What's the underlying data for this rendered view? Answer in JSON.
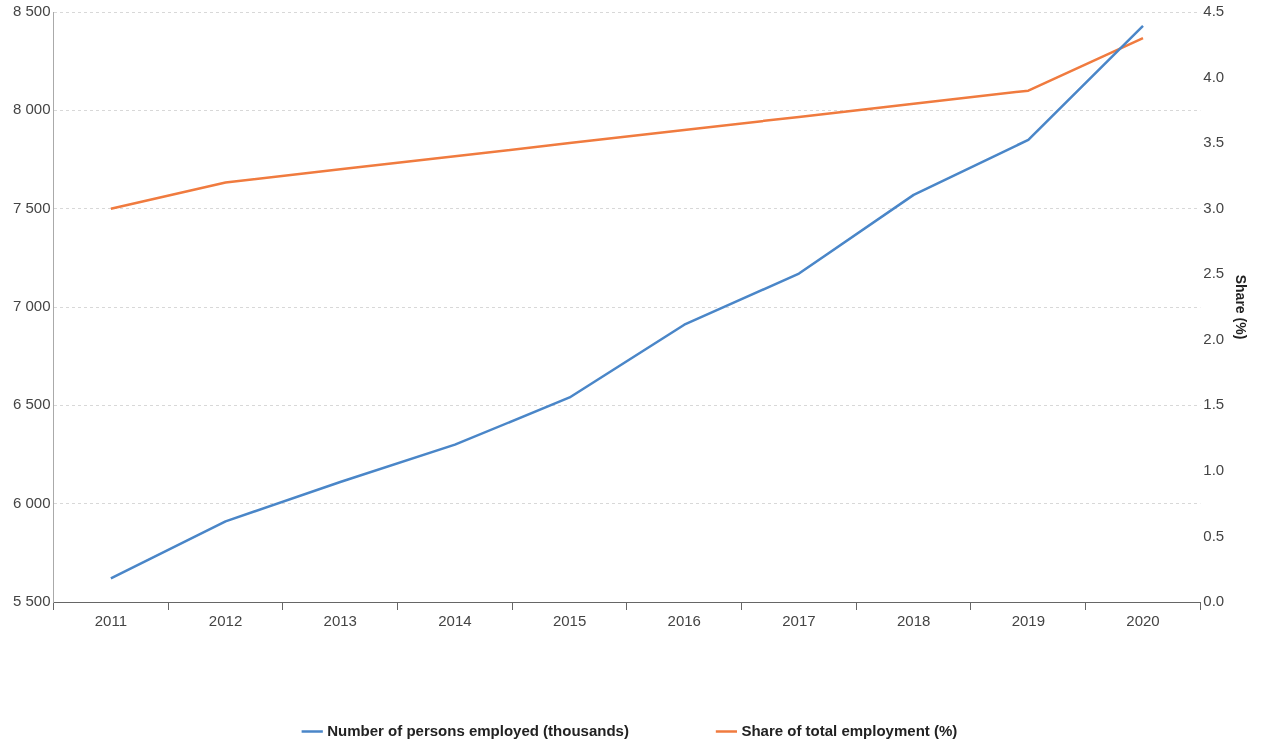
{
  "chart_data": {
    "type": "line",
    "y2label": "Share (%)",
    "categories": [
      "2011",
      "2012",
      "2013",
      "2014",
      "2015",
      "2016",
      "2017",
      "2018",
      "2019",
      "2020"
    ],
    "series": [
      {
        "name": "Number of persons employed (thousands)",
        "color": "#4a86c8",
        "values": [
          5620,
          5910,
          6110,
          6300,
          6540,
          6910,
          7170,
          7570,
          7850,
          8430
        ]
      },
      {
        "name": "Share of total employment (%)",
        "color": "#f07b3f",
        "axis": "y2",
        "values": [
          3.0,
          3.2,
          3.3,
          3.4,
          3.5,
          3.6,
          3.7,
          3.8,
          3.9,
          4.3
        ]
      }
    ],
    "ylim": [
      5500,
      8500
    ],
    "yticks": [
      {
        "value": 5500,
        "label": "5 500"
      },
      {
        "value": 6000,
        "label": "6 000"
      },
      {
        "value": 6500,
        "label": "6 500"
      },
      {
        "value": 7000,
        "label": "7 000"
      },
      {
        "value": 7500,
        "label": "7 500"
      },
      {
        "value": 8000,
        "label": "8 000"
      },
      {
        "value": 8500,
        "label": "8 500"
      }
    ],
    "y2lim": [
      0,
      4.5
    ],
    "y2ticks": [
      {
        "value": 0,
        "label": "0.0"
      },
      {
        "value": 0.5,
        "label": "0.5"
      },
      {
        "value": 1,
        "label": "1.0"
      },
      {
        "value": 1.5,
        "label": "1.5"
      },
      {
        "value": 2,
        "label": "2.0"
      },
      {
        "value": 2.5,
        "label": "2.5"
      },
      {
        "value": 3,
        "label": "3.0"
      },
      {
        "value": 3.5,
        "label": "3.5"
      },
      {
        "value": 4,
        "label": "4.0"
      },
      {
        "value": 4.5,
        "label": "4.5"
      }
    ],
    "grid": "y",
    "legend": "bottom",
    "marker": "none",
    "line_style": "solid"
  }
}
